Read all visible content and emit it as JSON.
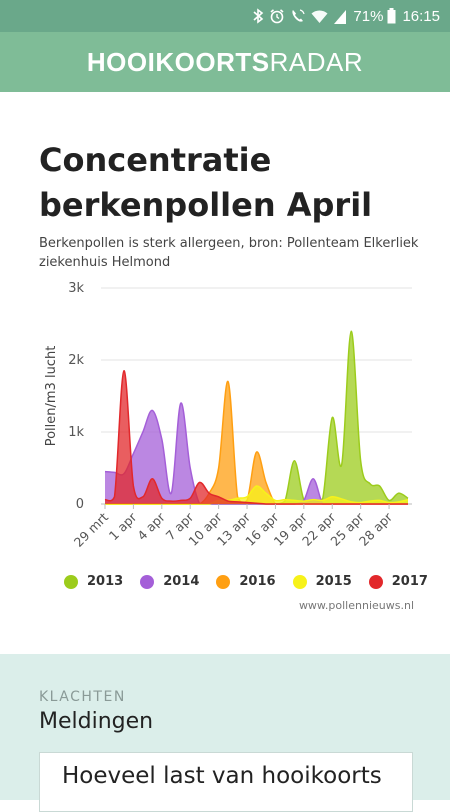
{
  "status_bar": {
    "battery": "71%",
    "time": "16:15",
    "icons": [
      "bluetooth-icon",
      "alarm-icon",
      "call-icon",
      "wifi-icon",
      "signal-icon",
      "battery-icon"
    ]
  },
  "app_bar": {
    "title_bold": "HOOIKOORTS",
    "title_light": "RADAR"
  },
  "article": {
    "title": "Concentratie berkenpollen April",
    "subtitle": "Berkenpollen is sterk allergeen, bron: Pollenteam Elkerliek ziekenhuis Helmond",
    "credit": "www.pollennieuws.nl"
  },
  "chart_data": {
    "type": "area",
    "ylabel": "Pollen/m3 lucht",
    "ylim": [
      0,
      3000
    ],
    "yticks": [
      0,
      1000,
      2000,
      3000
    ],
    "ytick_labels": [
      "0",
      "1k",
      "2k",
      "3k"
    ],
    "x": [
      "29 mrt",
      "30 mrt",
      "31 mrt",
      "1 apr",
      "2 apr",
      "3 apr",
      "4 apr",
      "5 apr",
      "6 apr",
      "7 apr",
      "8 apr",
      "9 apr",
      "10 apr",
      "11 apr",
      "12 apr",
      "13 apr",
      "14 apr",
      "15 apr",
      "16 apr",
      "17 apr",
      "18 apr",
      "19 apr",
      "20 apr",
      "21 apr",
      "22 apr",
      "23 apr",
      "24 apr",
      "25 apr",
      "26 apr",
      "27 apr",
      "28 apr",
      "29 apr",
      "30 apr"
    ],
    "xtick_labels": [
      "29 mrt",
      "1 apr",
      "4 apr",
      "7 apr",
      "10 apr",
      "13 apr",
      "16 apr",
      "19 apr",
      "22 apr",
      "25 apr",
      "28 apr"
    ],
    "series": [
      {
        "name": "2013",
        "color": "#9ccc1c",
        "values": [
          0,
          0,
          0,
          0,
          0,
          0,
          0,
          0,
          0,
          0,
          0,
          0,
          0,
          0,
          0,
          0,
          0,
          0,
          0,
          40,
          600,
          60,
          50,
          80,
          1200,
          550,
          2400,
          600,
          280,
          250,
          50,
          150,
          80
        ]
      },
      {
        "name": "2014",
        "color": "#a45fd8",
        "values": [
          450,
          440,
          420,
          700,
          1000,
          1300,
          900,
          150,
          1400,
          500,
          0,
          0,
          0,
          0,
          0,
          0,
          0,
          0,
          0,
          0,
          0,
          50,
          350,
          0,
          0,
          0,
          0,
          0,
          0,
          0,
          0,
          0,
          0
        ]
      },
      {
        "name": "2016",
        "color": "#ff9f12",
        "values": [
          0,
          0,
          0,
          0,
          0,
          0,
          0,
          0,
          0,
          0,
          0,
          150,
          500,
          1700,
          100,
          50,
          720,
          300,
          0,
          0,
          0,
          0,
          0,
          0,
          0,
          0,
          0,
          0,
          0,
          0,
          0,
          0,
          0
        ]
      },
      {
        "name": "2015",
        "color": "#f7f21a",
        "values": [
          0,
          0,
          0,
          0,
          0,
          0,
          0,
          0,
          0,
          0,
          0,
          0,
          50,
          50,
          80,
          100,
          250,
          150,
          50,
          60,
          50,
          40,
          60,
          50,
          100,
          70,
          30,
          20,
          40,
          50,
          20,
          30,
          60
        ]
      },
      {
        "name": "2017",
        "color": "#e2282b",
        "values": [
          60,
          100,
          1850,
          250,
          100,
          350,
          80,
          40,
          50,
          80,
          300,
          150,
          100,
          40,
          30,
          20,
          10,
          0,
          0,
          0,
          0,
          0,
          0,
          0,
          0,
          0,
          0,
          0,
          0,
          0,
          0,
          0,
          0
        ]
      }
    ],
    "legend_order": [
      "2013",
      "2014",
      "2016",
      "2015",
      "2017"
    ],
    "legend_position": "bottom",
    "grid": true
  },
  "panel": {
    "kicker": "KLACHTEN",
    "title": "Meldingen",
    "card_text": "Hoeveel last van hooikoorts"
  }
}
